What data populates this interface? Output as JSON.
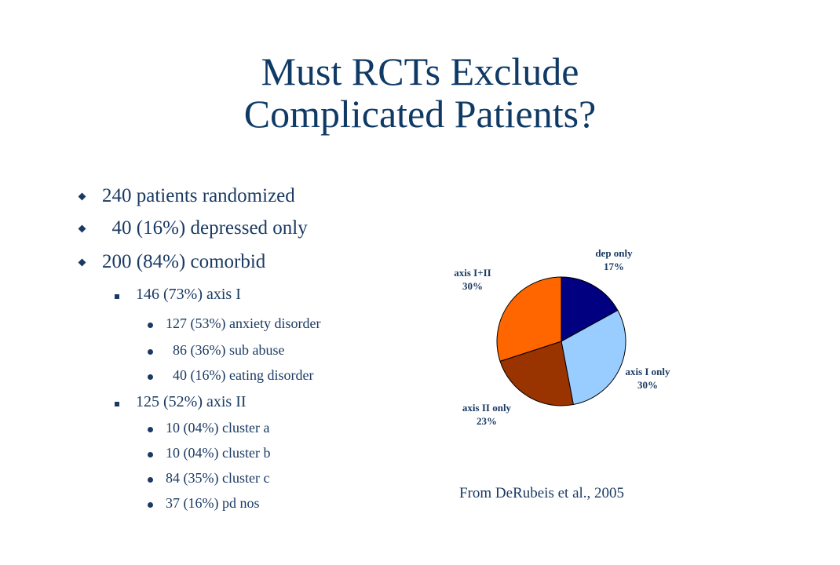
{
  "slide": {
    "title_line1": "Must RCTs Exclude",
    "title_line2": "Complicated Patients?",
    "source": "From DeRubeis et al., 2005",
    "text_color": "#1a3a63"
  },
  "bullets": [
    {
      "level": 1,
      "text": "240 patients randomized"
    },
    {
      "level": 1,
      "text": "  40 (16%) depressed only"
    },
    {
      "level": 1,
      "text": "200 (84%) comorbid"
    },
    {
      "level": 2,
      "text": "146 (73%) axis I"
    },
    {
      "level": 3,
      "text": "127 (53%) anxiety disorder"
    },
    {
      "level": 3,
      "text": "  86 (36%) sub abuse"
    },
    {
      "level": 3,
      "text": "  40 (16%) eating disorder"
    },
    {
      "level": 2,
      "text": "125 (52%) axis II"
    },
    {
      "level": 3,
      "text": "10 (04%) cluster a"
    },
    {
      "level": 3,
      "text": "10 (04%) cluster b"
    },
    {
      "level": 3,
      "text": "84 (35%) cluster c"
    },
    {
      "level": 3,
      "text": "37 (16%) pd nos"
    }
  ],
  "chart_data": {
    "type": "pie",
    "title": "",
    "slices": [
      {
        "label": "dep only",
        "value": 17,
        "value_label": "17%",
        "color": "#000080"
      },
      {
        "label": "axis I only",
        "value": 30,
        "value_label": "30%",
        "color": "#99ccff"
      },
      {
        "label": "axis II only",
        "value": 23,
        "value_label": "23%",
        "color": "#993300"
      },
      {
        "label": "axis I+II",
        "value": 30,
        "value_label": "30%",
        "color": "#ff6600"
      }
    ]
  }
}
